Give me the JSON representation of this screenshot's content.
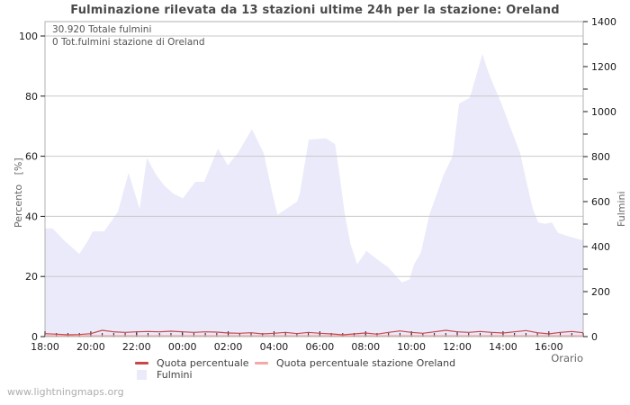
{
  "title": "Fulminazione rilevata da 13 stazioni ultime 24h per la stazione: Oreland",
  "annotations": {
    "total_fulmini": "30.920 Totale fulmini",
    "station_total": "0 Tot.fulmini stazione di Oreland"
  },
  "watermark": "www.lightningmaps.org",
  "axes": {
    "left": {
      "label": "Percento   [%]",
      "ticks": [
        0,
        20,
        40,
        60,
        80,
        100
      ],
      "range": [
        0,
        100
      ]
    },
    "right": {
      "label": "Fulmini",
      "ticks": [
        0,
        200,
        400,
        600,
        800,
        1000,
        1200,
        1400
      ],
      "minor_step": 100,
      "range": [
        0,
        1400
      ]
    },
    "x": {
      "label": "Orario",
      "tick_labels": [
        "18:00",
        "20:00",
        "22:00",
        "00:00",
        "02:00",
        "04:00",
        "06:00",
        "08:00",
        "10:00",
        "12:00",
        "14:00",
        "16:00"
      ],
      "tick_minutes": [
        0,
        120,
        240,
        360,
        480,
        600,
        720,
        840,
        960,
        1080,
        1200,
        1320
      ],
      "minor_step_minutes": 30,
      "range_minutes": [
        0,
        1410
      ]
    }
  },
  "legend": [
    {
      "label": "Quota percentuale",
      "swatch": "line",
      "color": "#c74848"
    },
    {
      "label": "Quota percentuale stazione Oreland",
      "swatch": "line",
      "color": "#f4a9a9"
    },
    {
      "label": "Fulmini",
      "swatch": "area",
      "color": "#eaeafa"
    }
  ],
  "colors": {
    "area": "#eaeafa",
    "quota_line": "#c74848",
    "station_line": "#f4a9a9",
    "grid": "#c9c9c9",
    "frame": "#b0b0b0",
    "tick": "#1a1a1a",
    "title": "#4a4a4a"
  },
  "chart_data": {
    "type": "area",
    "title": "Fulminazione rilevata da 13 stazioni ultime 24h per la stazione: Oreland",
    "xlabel": "Orario",
    "ylabel_left": "Percento [%]",
    "ylabel_right": "Fulmini",
    "x_range_hours": [
      "18:00",
      "17:30 (+1d)"
    ],
    "ylim_left": [
      0,
      100
    ],
    "ylim_right": [
      0,
      1400
    ],
    "grid": true,
    "legend_position": "bottom",
    "totals": {
      "totale_fulmini": 30920,
      "fulmini_stazione_oreland": 0
    },
    "fulmini_per_percent": 14,
    "series": [
      {
        "name": "Fulmini",
        "style": "area",
        "axis": "right",
        "color": "#eaeafa",
        "points_minutes_value": [
          [
            0,
            504
          ],
          [
            20,
            504
          ],
          [
            50,
            448
          ],
          [
            90,
            385
          ],
          [
            113,
            448
          ],
          [
            125,
            490
          ],
          [
            155,
            490
          ],
          [
            191,
            581
          ],
          [
            219,
            763
          ],
          [
            248,
            595
          ],
          [
            267,
            833
          ],
          [
            290,
            756
          ],
          [
            314,
            700
          ],
          [
            337,
            665
          ],
          [
            361,
            644
          ],
          [
            394,
            721
          ],
          [
            417,
            721
          ],
          [
            453,
            875
          ],
          [
            479,
            798
          ],
          [
            505,
            854
          ],
          [
            542,
            966
          ],
          [
            573,
            854
          ],
          [
            595,
            672
          ],
          [
            609,
            567
          ],
          [
            644,
            609
          ],
          [
            661,
            630
          ],
          [
            668,
            672
          ],
          [
            691,
            917
          ],
          [
            736,
            924
          ],
          [
            760,
            896
          ],
          [
            771,
            763
          ],
          [
            785,
            574
          ],
          [
            800,
            434
          ],
          [
            818,
            336
          ],
          [
            842,
            399
          ],
          [
            872,
            357
          ],
          [
            900,
            322
          ],
          [
            935,
            252
          ],
          [
            955,
            266
          ],
          [
            967,
            336
          ],
          [
            985,
            392
          ],
          [
            1007,
            567
          ],
          [
            1045,
            756
          ],
          [
            1068,
            840
          ],
          [
            1085,
            1085
          ],
          [
            1113,
            1113
          ],
          [
            1146,
            1316
          ],
          [
            1160,
            1239
          ],
          [
            1174,
            1176
          ],
          [
            1196,
            1085
          ],
          [
            1215,
            994
          ],
          [
            1233,
            910
          ],
          [
            1245,
            854
          ],
          [
            1264,
            700
          ],
          [
            1278,
            595
          ],
          [
            1292,
            532
          ],
          [
            1310,
            525
          ],
          [
            1328,
            532
          ],
          [
            1344,
            483
          ],
          [
            1368,
            469
          ],
          [
            1395,
            455
          ],
          [
            1410,
            448
          ]
        ]
      },
      {
        "name": "Quota percentuale",
        "style": "line",
        "axis": "left",
        "color": "#c74848",
        "step_minutes": 30,
        "values_pct": [
          1.0,
          0.8,
          0.6,
          0.7,
          1.0,
          2.1,
          1.6,
          1.4,
          1.6,
          1.7,
          1.6,
          1.8,
          1.6,
          1.4,
          1.6,
          1.5,
          1.2,
          1.1,
          1.3,
          0.9,
          1.1,
          1.4,
          1.0,
          1.4,
          1.1,
          0.9,
          0.6,
          0.9,
          1.2,
          0.8,
          1.4,
          1.9,
          1.4,
          1.1,
          1.6,
          2.1,
          1.6,
          1.4,
          1.7,
          1.4,
          1.2,
          1.6,
          2.0,
          1.3,
          0.9,
          1.4,
          1.7,
          1.3
        ]
      },
      {
        "name": "Quota percentuale stazione Oreland",
        "style": "line",
        "axis": "left",
        "color": "#f4a9a9",
        "flat_value_pct": 0
      }
    ]
  }
}
